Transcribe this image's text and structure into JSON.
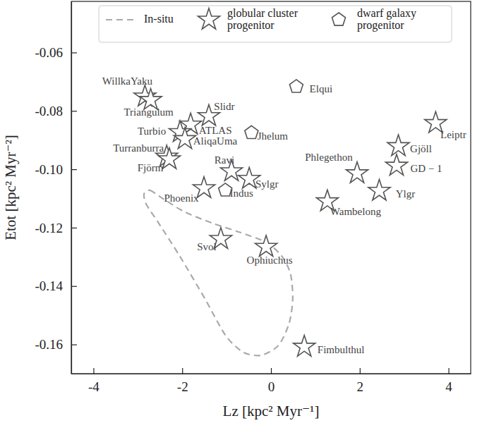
{
  "chart_data": {
    "type": "scatter",
    "x_label": "Lz [kpc² Myr⁻¹]",
    "y_label": "Etot [kpc² Myr⁻²]",
    "xlim": [
      -4.5,
      4.5
    ],
    "ylim": [
      -0.17,
      -0.0425
    ],
    "xticks": [
      -4,
      -2,
      0,
      2,
      4
    ],
    "yticks": [
      -0.06,
      -0.08,
      {
        "value": -0.1,
        "label": "-0.10"
      },
      -0.12,
      -0.14,
      -0.16
    ],
    "legend": "top",
    "series": [
      {
        "name": "In-situ",
        "type": "line",
        "line_style": "dashed",
        "color": "#aaaaaa",
        "x": [
          -2.86,
          -2.73,
          -2.48,
          -1.97,
          -1.33,
          -0.7,
          -0.1,
          0.25,
          0.44,
          0.49,
          0.41,
          0.17,
          -0.22,
          -0.62,
          -1.02,
          -1.49,
          -2.05,
          -2.52,
          -2.81
        ],
        "values": [
          -0.1084,
          -0.1072,
          -0.1096,
          -0.1144,
          -0.1184,
          -0.1216,
          -0.1251,
          -0.1299,
          -0.1359,
          -0.1443,
          -0.1527,
          -0.1603,
          -0.1637,
          -0.1627,
          -0.157,
          -0.1443,
          -0.1299,
          -0.1187,
          -0.112
        ]
      },
      {
        "name": "globular cluster\nprogenitor",
        "type": "scatter",
        "marker": "star",
        "color": "#555555",
        "labels": [
          "WillkaYaku",
          "Triangulum",
          "Slidr",
          "ATLAS",
          "Turbio",
          "AliqaUma",
          "Turranburra",
          "Fjörm",
          "Ravi",
          "Sylgr",
          "Phoenix",
          "Svol",
          "Ophiuchus",
          "Fimbulthul",
          "Leiptr",
          "Gjöll",
          "GD − 1",
          "Phlegethon",
          "Ylgr",
          "Wambelong"
        ],
        "x": [
          -2.84,
          -2.71,
          -1.4,
          -1.81,
          -2.05,
          -1.94,
          -2.35,
          -2.29,
          -0.89,
          -0.49,
          -1.51,
          -1.13,
          -0.11,
          0.75,
          3.71,
          2.87,
          2.83,
          1.94,
          2.44,
          1.27
        ],
        "values": [
          -0.0751,
          -0.0763,
          -0.0818,
          -0.0847,
          -0.0873,
          -0.0897,
          -0.0957,
          -0.0966,
          -0.1007,
          -0.1033,
          -0.1065,
          -0.1239,
          -0.1266,
          -0.1608,
          -0.0842,
          -0.0921,
          -0.0988,
          -0.1014,
          -0.1074,
          -0.111
        ]
      },
      {
        "name": "dwarf galaxy\nprogenitor",
        "type": "scatter",
        "marker": "pentagon",
        "color": "#555555",
        "labels": [
          "Elqui",
          "Jhelum",
          "Indus"
        ],
        "x": [
          0.57,
          -0.44,
          -1.03
        ],
        "values": [
          -0.0717,
          -0.0875,
          -0.1072
        ]
      }
    ]
  }
}
